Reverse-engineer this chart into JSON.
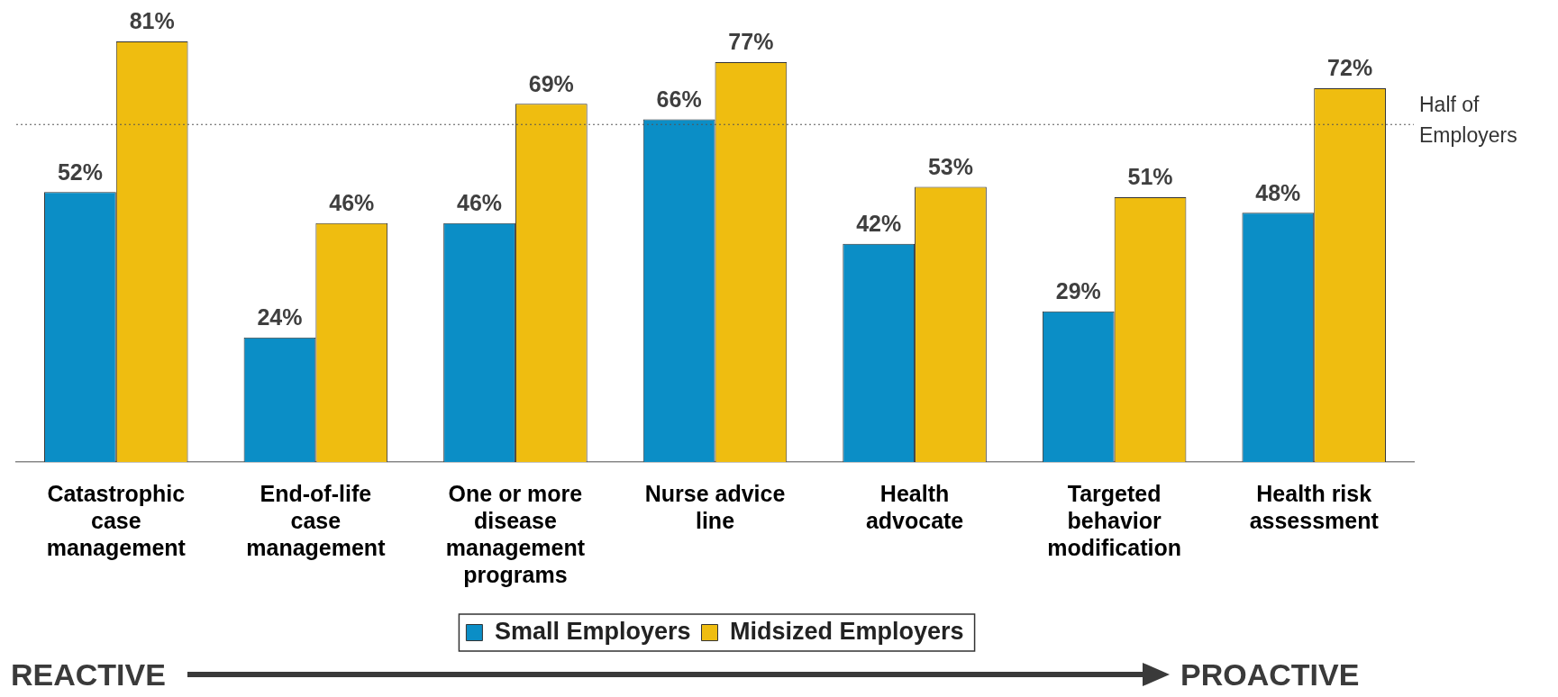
{
  "chart_data": {
    "type": "bar",
    "categories": [
      "Catastrophic case management",
      "End-of-life case management",
      "One or more disease management programs",
      "Nurse advice line",
      "Health advocate",
      "Targeted behavior modification",
      "Health risk assessment"
    ],
    "series": [
      {
        "name": "Small Employers",
        "color": "#0b8ec6",
        "values": [
          52,
          24,
          46,
          66,
          42,
          29,
          48
        ],
        "value_labels": [
          "52%",
          "24%",
          "46%",
          "66%",
          "42%",
          "29%",
          "48%"
        ]
      },
      {
        "name": "Midsized Employers",
        "color": "#efbd10",
        "values": [
          81,
          46,
          69,
          77,
          53,
          51,
          72
        ],
        "value_labels": [
          "81%",
          "46%",
          "69%",
          "77%",
          "53%",
          "51%",
          "72%"
        ]
      }
    ],
    "legend": "bottom",
    "ref_lines": [
      {
        "axis": "y",
        "value": 65,
        "label": "Half of Employers",
        "line_style": "dotted",
        "color": "#555555"
      }
    ],
    "annotations": [
      "REACTIVE",
      "PROACTIVE"
    ]
  }
}
